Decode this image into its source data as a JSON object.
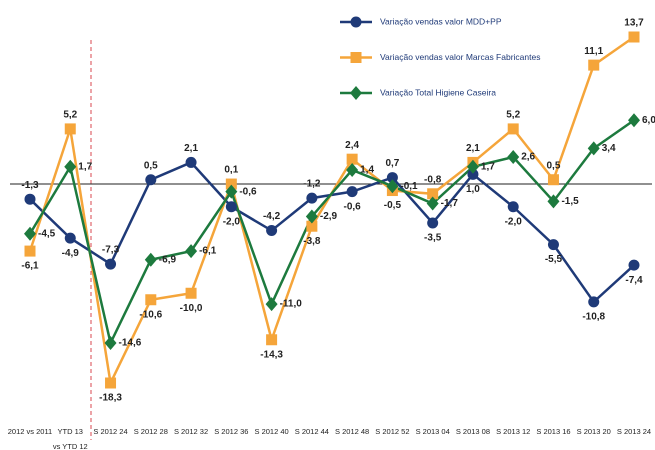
{
  "chart_data": {
    "type": "line",
    "categories": [
      "2012 vs 2011",
      [
        "YTD 13",
        "vs YTD 12"
      ],
      "S 2012 24",
      "S 2012 28",
      "S 2012 32",
      "S 2012 36",
      "S 2012 40",
      "S 2012 44",
      "S 2012 48",
      "S 2012 52",
      "S 2013 04",
      "S 2013 08",
      "S 2013 12",
      "S 2013 16",
      "S 2013 20",
      "S 2013 24"
    ],
    "series": [
      {
        "name": "Variação vendas valor MDD+PP",
        "color": "#1f3a78",
        "marker": "circle",
        "values": [
          -1.3,
          -4.9,
          -7.3,
          0.5,
          2.1,
          -2.0,
          -4.2,
          -1.2,
          -0.6,
          0.7,
          -3.5,
          1.0,
          -2.0,
          -5.5,
          -10.8,
          -7.4
        ],
        "value_labels": [
          "-1,3",
          "-4,9",
          "-7,3",
          "0,5",
          "2,1",
          "-2,0",
          "-4,2",
          "-1,2",
          "-0,6",
          "0,7",
          "-3,5",
          "1,0",
          "-2,0",
          "-5,5",
          "-10,8",
          "-7,4"
        ]
      },
      {
        "name": "Variação vendas valor Marcas Fabricantes",
        "color": "#f5a53a",
        "marker": "square",
        "values": [
          -6.1,
          5.2,
          -18.3,
          -10.6,
          -10.0,
          0.1,
          -14.3,
          -3.8,
          2.4,
          -0.5,
          -0.8,
          2.1,
          5.2,
          0.5,
          11.1,
          13.7
        ],
        "value_labels": [
          "-6,1",
          "5,2",
          "-18,3",
          "-10,6",
          "-10,0",
          "0,1",
          "-14,3",
          "-3,8",
          "2,4",
          "-0,5",
          "-0,8",
          "2,1",
          "5,2",
          "0,5",
          "11,1",
          "13,7"
        ]
      },
      {
        "name": "Variação Total Higiene Caseira",
        "color": "#1d7a3e",
        "marker": "diamond",
        "values": [
          -4.5,
          1.7,
          -14.6,
          -6.9,
          -6.1,
          -0.6,
          -11.0,
          -2.9,
          1.4,
          -0.1,
          -1.7,
          1.7,
          2.6,
          -1.5,
          3.4,
          6.0
        ],
        "value_labels": [
          "-4,5",
          "1,7",
          "-14,6",
          "-6,9",
          "-6,1",
          "-0,6",
          "-11,0",
          "-2,9",
          "1,4",
          "-0,1",
          "-1,7",
          "1,7",
          "2,6",
          "-1,5",
          "3,4",
          "6,0"
        ]
      }
    ]
  }
}
